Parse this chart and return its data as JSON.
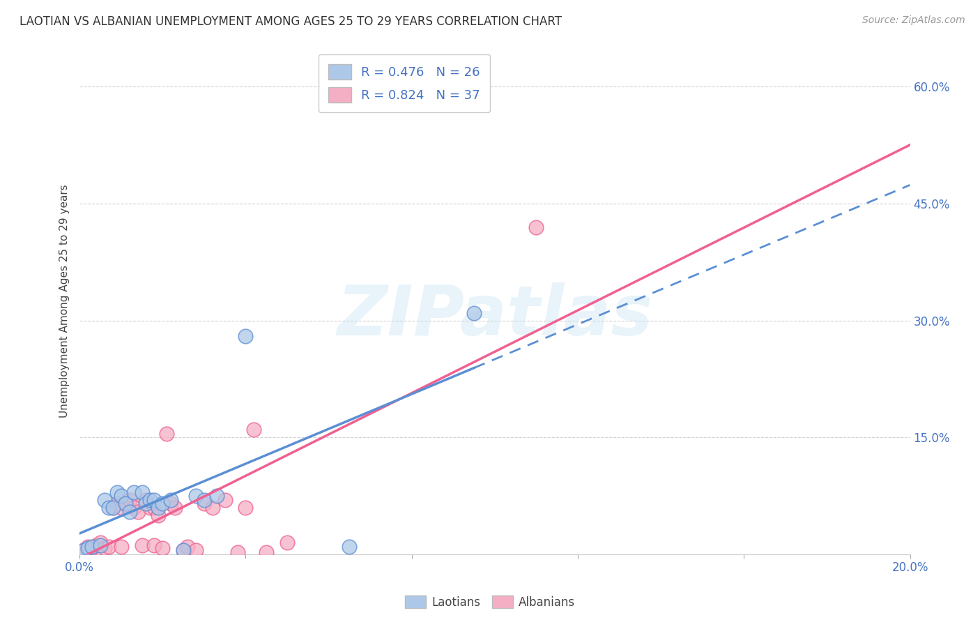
{
  "title": "LAOTIAN VS ALBANIAN UNEMPLOYMENT AMONG AGES 25 TO 29 YEARS CORRELATION CHART",
  "source": "Source: ZipAtlas.com",
  "ylabel": "Unemployment Among Ages 25 to 29 years",
  "xlim": [
    0.0,
    0.2
  ],
  "ylim": [
    0.0,
    0.65
  ],
  "xticks": [
    0.0,
    0.04,
    0.08,
    0.12,
    0.16,
    0.2
  ],
  "xticklabels": [
    "0.0%",
    "",
    "",
    "",
    "",
    "20.0%"
  ],
  "yticks": [
    0.0,
    0.15,
    0.3,
    0.45,
    0.6
  ],
  "yticklabels": [
    "",
    "15.0%",
    "30.0%",
    "45.0%",
    "60.0%"
  ],
  "laotian_color": "#adc8e8",
  "albanian_color": "#f5afc5",
  "laotian_line_color": "#5b8fd4",
  "albanian_line_color": "#f06090",
  "laotian_R": 0.476,
  "laotian_N": 26,
  "albanian_R": 0.824,
  "albanian_N": 37,
  "legend_label_laotian": "Laotians",
  "legend_label_albanian": "Albanians",
  "watermark": "ZIPatlas",
  "laotian_x": [
    0.001,
    0.002,
    0.003,
    0.005,
    0.006,
    0.007,
    0.008,
    0.009,
    0.01,
    0.011,
    0.012,
    0.013,
    0.015,
    0.016,
    0.017,
    0.018,
    0.019,
    0.02,
    0.022,
    0.025,
    0.028,
    0.03,
    0.033,
    0.04,
    0.065,
    0.095
  ],
  "laotian_y": [
    0.005,
    0.008,
    0.01,
    0.012,
    0.07,
    0.06,
    0.06,
    0.08,
    0.075,
    0.065,
    0.055,
    0.08,
    0.08,
    0.065,
    0.07,
    0.07,
    0.06,
    0.065,
    0.07,
    0.005,
    0.075,
    0.07,
    0.075,
    0.28,
    0.01,
    0.31
  ],
  "albanian_x": [
    0.001,
    0.002,
    0.003,
    0.004,
    0.005,
    0.006,
    0.007,
    0.008,
    0.009,
    0.01,
    0.01,
    0.011,
    0.012,
    0.013,
    0.014,
    0.015,
    0.016,
    0.017,
    0.018,
    0.018,
    0.019,
    0.02,
    0.021,
    0.022,
    0.023,
    0.025,
    0.026,
    0.028,
    0.03,
    0.032,
    0.035,
    0.038,
    0.04,
    0.042,
    0.045,
    0.05,
    0.11
  ],
  "albanian_y": [
    0.005,
    0.01,
    0.008,
    0.012,
    0.015,
    0.008,
    0.01,
    0.06,
    0.065,
    0.06,
    0.01,
    0.065,
    0.07,
    0.06,
    0.055,
    0.012,
    0.07,
    0.06,
    0.06,
    0.012,
    0.05,
    0.008,
    0.155,
    0.065,
    0.06,
    0.005,
    0.01,
    0.005,
    0.065,
    0.06,
    0.07,
    0.003,
    0.06,
    0.16,
    0.003,
    0.015,
    0.42
  ],
  "grid_color": "#cccccc",
  "title_fontsize": 12,
  "source_fontsize": 10,
  "tick_fontsize": 12,
  "ylabel_fontsize": 11
}
